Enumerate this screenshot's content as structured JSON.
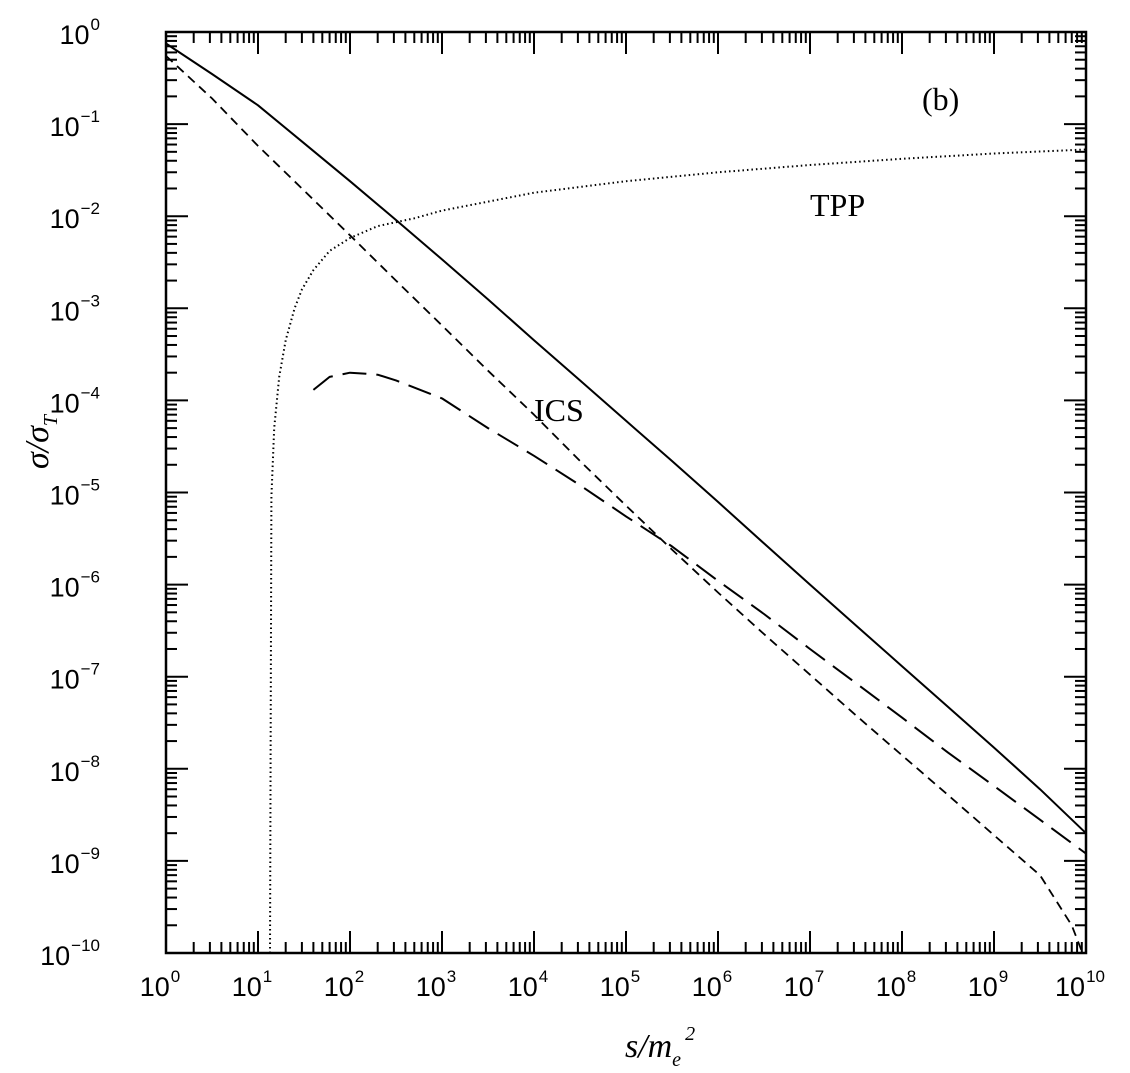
{
  "chart_data": {
    "type": "line",
    "panel_label": "(b)",
    "xscale": "log",
    "yscale": "log",
    "xlim": [
      1,
      10000000000
    ],
    "ylim": [
      1e-10,
      1
    ],
    "xlabel": {
      "main": "s/m",
      "sub": "e",
      "sup": "2"
    },
    "ylabel": {
      "main": "σ/σ",
      "sub": "T"
    },
    "x_ticks": [
      {
        "base": "10",
        "exp": "0"
      },
      {
        "base": "10",
        "exp": "1"
      },
      {
        "base": "10",
        "exp": "2"
      },
      {
        "base": "10",
        "exp": "3"
      },
      {
        "base": "10",
        "exp": "4"
      },
      {
        "base": "10",
        "exp": "5"
      },
      {
        "base": "10",
        "exp": "6"
      },
      {
        "base": "10",
        "exp": "7"
      },
      {
        "base": "10",
        "exp": "8"
      },
      {
        "base": "10",
        "exp": "9"
      },
      {
        "base": "10",
        "exp": "10"
      }
    ],
    "y_ticks": [
      {
        "base": "10",
        "exp": "0"
      },
      {
        "base": "10",
        "exp": "−1"
      },
      {
        "base": "10",
        "exp": "−2"
      },
      {
        "base": "10",
        "exp": "−3"
      },
      {
        "base": "10",
        "exp": "−4"
      },
      {
        "base": "10",
        "exp": "−5"
      },
      {
        "base": "10",
        "exp": "−6"
      },
      {
        "base": "10",
        "exp": "−7"
      },
      {
        "base": "10",
        "exp": "−8"
      },
      {
        "base": "10",
        "exp": "−9"
      },
      {
        "base": "10",
        "exp": "−10"
      }
    ],
    "annotations": [
      {
        "text": "TPP",
        "x": 10000000,
        "y": 0.01
      },
      {
        "text": "ICS",
        "x": 10000,
        "y": 6e-05
      }
    ],
    "series": [
      {
        "style": "solid",
        "x": [
          1,
          3.16,
          10,
          31.6,
          100,
          316,
          1000,
          3160,
          10000,
          31600,
          100000,
          316000,
          1000000,
          3160000,
          10000000,
          31600000,
          100000000,
          316000000,
          1000000000,
          3160000000,
          10000000000
        ],
        "y": [
          0.75,
          0.35,
          0.16,
          0.062,
          0.024,
          0.0091,
          0.0034,
          0.00125,
          0.00045,
          0.000165,
          6e-05,
          2.2e-05,
          7.9e-06,
          2.8e-06,
          1e-06,
          3.6e-07,
          1.3e-07,
          4.7e-08,
          1.7e-08,
          6e-09,
          2e-09
        ]
      },
      {
        "style": "short-dash",
        "x": [
          1,
          3.16,
          10,
          31.6,
          100,
          316,
          1000,
          3160,
          10000,
          31600,
          100000,
          316000,
          1000000,
          3160000,
          10000000,
          31600000,
          100000000,
          316000000,
          1000000000,
          3160000000,
          7000000000,
          10000000000
        ],
        "y": [
          0.55,
          0.19,
          0.058,
          0.019,
          0.0062,
          0.002,
          0.00065,
          0.00021,
          7e-05,
          2.2e-05,
          7.2e-06,
          2.4e-06,
          8.2e-07,
          2.9e-07,
          1.05e-07,
          3.8e-08,
          1.4e-08,
          5.2e-09,
          1.9e-09,
          7e-10,
          2e-10,
          8e-11
        ]
      },
      {
        "style": "dotted",
        "x": [
          13.5,
          14,
          15,
          17,
          20,
          25,
          30,
          40,
          60,
          100,
          200,
          500,
          1000,
          10000,
          100000,
          1000000,
          10000000,
          100000000,
          1000000000,
          10000000000
        ],
        "y": [
          1e-10,
          9e-06,
          5e-05,
          0.00018,
          0.00045,
          0.001,
          0.0016,
          0.0026,
          0.0042,
          0.0058,
          0.0078,
          0.0095,
          0.0115,
          0.018,
          0.024,
          0.03,
          0.036,
          0.042,
          0.048,
          0.053
        ]
      },
      {
        "style": "long-dash",
        "x": [
          40,
          60,
          100,
          150,
          200,
          316,
          1000,
          3160,
          10000,
          31600,
          100000,
          316000,
          1000000,
          3160000,
          10000000,
          31600000,
          100000000,
          316000000,
          1000000000,
          3160000000,
          10000000000
        ],
        "y": [
          0.00013,
          0.00018,
          0.0002,
          0.000195,
          0.00019,
          0.000165,
          0.000105,
          5e-05,
          2.5e-05,
          1.2e-05,
          5.5e-06,
          2.6e-06,
          1.1e-06,
          4.8e-07,
          2e-07,
          8.5e-08,
          3.6e-08,
          1.5e-08,
          6.5e-09,
          2.8e-09,
          1.2e-09
        ]
      }
    ]
  }
}
